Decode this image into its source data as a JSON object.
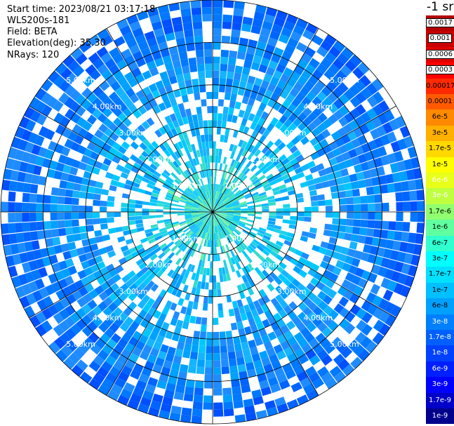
{
  "header": {
    "start_time": "Start time: 2023/08/21 03:17:18",
    "instrument": "WLS200s-181",
    "field": "Field: BETA",
    "elevation": "Elevation(deg): 35.30",
    "nrays": "NRays: 120"
  },
  "chart_data": {
    "type": "heatmap",
    "projection": "polar (PPI scan)",
    "field": "BETA",
    "unit": "-1 sr",
    "n_rays": 120,
    "max_range_km": 5.0,
    "range_ring_labels": [
      "1.00km",
      "2.00km",
      "3.00km",
      "4.00km",
      "5.00km"
    ],
    "range_rings_km": [
      1,
      2,
      3,
      4,
      5
    ],
    "spokes": 12,
    "colorbar": {
      "labels": [
        "0.0017",
        "0.001",
        "0.0006",
        "0.0003",
        "0.00017",
        "0.0001",
        "6e-5",
        "3e-5",
        "1.7e-5",
        "1e-5",
        "6e-6",
        "3e-6",
        "1.7e-6",
        "1e-6",
        "6e-7",
        "3e-7",
        "1.7e-7",
        "1e-7",
        "6e-8",
        "3e-8",
        "1.7e-8",
        "1e-8",
        "6e-9",
        "3e-9",
        "1.7e-9",
        "1e-9"
      ],
      "colors": [
        "#b40000",
        "#c80000",
        "#e00000",
        "#ff0000",
        "#ff2a00",
        "#ff5a00",
        "#ff8a00",
        "#ffb000",
        "#ffd800",
        "#ffff00",
        "#e8ff1a",
        "#c0ff40",
        "#90ff70",
        "#60ffa0",
        "#30ffd0",
        "#00ffff",
        "#00e0ff",
        "#00c0ff",
        "#00a0ff",
        "#0080ff",
        "#0060ff",
        "#0040ff",
        "#0020ff",
        "#0000ff",
        "#0000c8",
        "#00008c"
      ],
      "boxed_labels": [
        "0.0017",
        "0.001",
        "0.0006",
        "0.0003"
      ]
    }
  }
}
